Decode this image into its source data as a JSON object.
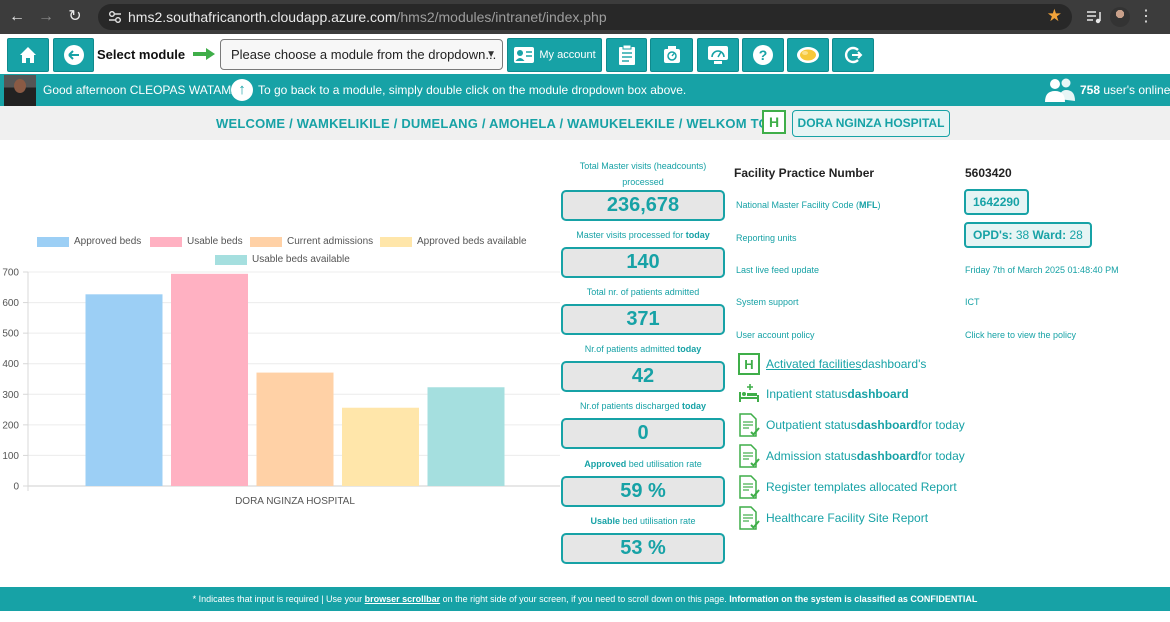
{
  "browser": {
    "url_host": "hms2.southafricanorth.cloudapp.azure.com",
    "url_path": "/hms2/modules/intranet/index.php"
  },
  "toolbar": {
    "select_module_label": "Select module",
    "module_placeholder": "Please choose a module from the dropdown...",
    "my_account_label": "My account"
  },
  "greeting": {
    "text": "Good afternoon CLEOPAS WATAMA",
    "hint": "To go back to a module, simply double click on the module dropdown box above.",
    "users_count": "758",
    "users_suffix": " user's online"
  },
  "welcome": {
    "text": "WELCOME / WAMKELIKILE / DUMELANG / AMOHELA / WAMUKELEKILE / WELKOM TO",
    "badge": "H",
    "hospital": "DORA NGINZA HOSPITAL"
  },
  "chart_data": {
    "type": "bar",
    "categories": [
      "DORA NGINZA HOSPITAL"
    ],
    "series": [
      {
        "name": "Approved beds",
        "values": [
          627
        ],
        "color": "#9ccff5"
      },
      {
        "name": "Usable beds",
        "values": [
          694
        ],
        "color": "#ffb1c2"
      },
      {
        "name": "Current admissions",
        "values": [
          371
        ],
        "color": "#ffd1a6"
      },
      {
        "name": "Approved beds available",
        "values": [
          256
        ],
        "color": "#ffe6aa"
      },
      {
        "name": "Usable beds available",
        "values": [
          323
        ],
        "color": "#a5dfdf"
      }
    ],
    "ylim": [
      0,
      700
    ],
    "yticks": [
      "0",
      "100",
      "200",
      "300",
      "400",
      "500",
      "600",
      "700"
    ],
    "grid": true,
    "legend_position": "top"
  },
  "stats": [
    {
      "label_a": "Total Master visits (headcounts) processed",
      "label_b": "",
      "label_c": "",
      "value": "236,678"
    },
    {
      "label_a": "Master visits processed for ",
      "label_b": "today",
      "label_c": "",
      "value": "140"
    },
    {
      "label_a": "Total nr. of patients admitted",
      "label_b": "",
      "label_c": "",
      "value": "371"
    },
    {
      "label_a": "Nr.of patients admitted ",
      "label_b": "today",
      "label_c": "",
      "value": "42"
    },
    {
      "label_a": "Nr.of patients discharged ",
      "label_b": "today",
      "label_c": "",
      "value": "0"
    },
    {
      "label_a": "",
      "label_b": "Approved",
      "label_c": " bed utilisation rate",
      "value": "59 %"
    },
    {
      "label_a": "",
      "label_b": "Usable",
      "label_c": " bed utilisation rate",
      "value": "53 %"
    }
  ],
  "info": {
    "practice_title": "Facility Practice Number",
    "practice_number": "5603420",
    "mfl_label": "National Master Facility Code (",
    "mfl_bold": "MFL",
    "mfl_close": ")",
    "mfl_value": "1642290",
    "reporting_label": "Reporting units",
    "opd_label": "OPD's:",
    "opd_value": " 38",
    "ward_label": " Ward:",
    "ward_value": " 28",
    "feed_label": "Last live feed update",
    "feed_value": "Friday 7th of March 2025 01:48:40 PM",
    "support_label": "System support",
    "support_value": "ICT",
    "policy_label": "User account policy",
    "policy_value": "Click here to view the policy"
  },
  "links": {
    "activated_a": "Activated facilities",
    "activated_b": " dashboard's",
    "inpatient_a": "Inpatient status ",
    "inpatient_b": "dashboard",
    "outpatient_a": "Outpatient status ",
    "outpatient_b": "dashboard",
    "outpatient_c": " for today",
    "admission_a": "Admission status ",
    "admission_b": "dashboard",
    "admission_c": " for today",
    "register": "Register templates allocated Report",
    "site": "Healthcare Facility Site Report"
  },
  "footer": {
    "a": "* Indicates that input is required | Use your ",
    "b": "browser scrollbar",
    "c": " on the right side of your screen, if you need to scroll down on this page. ",
    "d": "Information on the system is classified as CONFIDENTIAL"
  },
  "colors": {
    "accent": "#17a2a6",
    "green_badge": "#3fae49",
    "star": "#f2a33a"
  }
}
